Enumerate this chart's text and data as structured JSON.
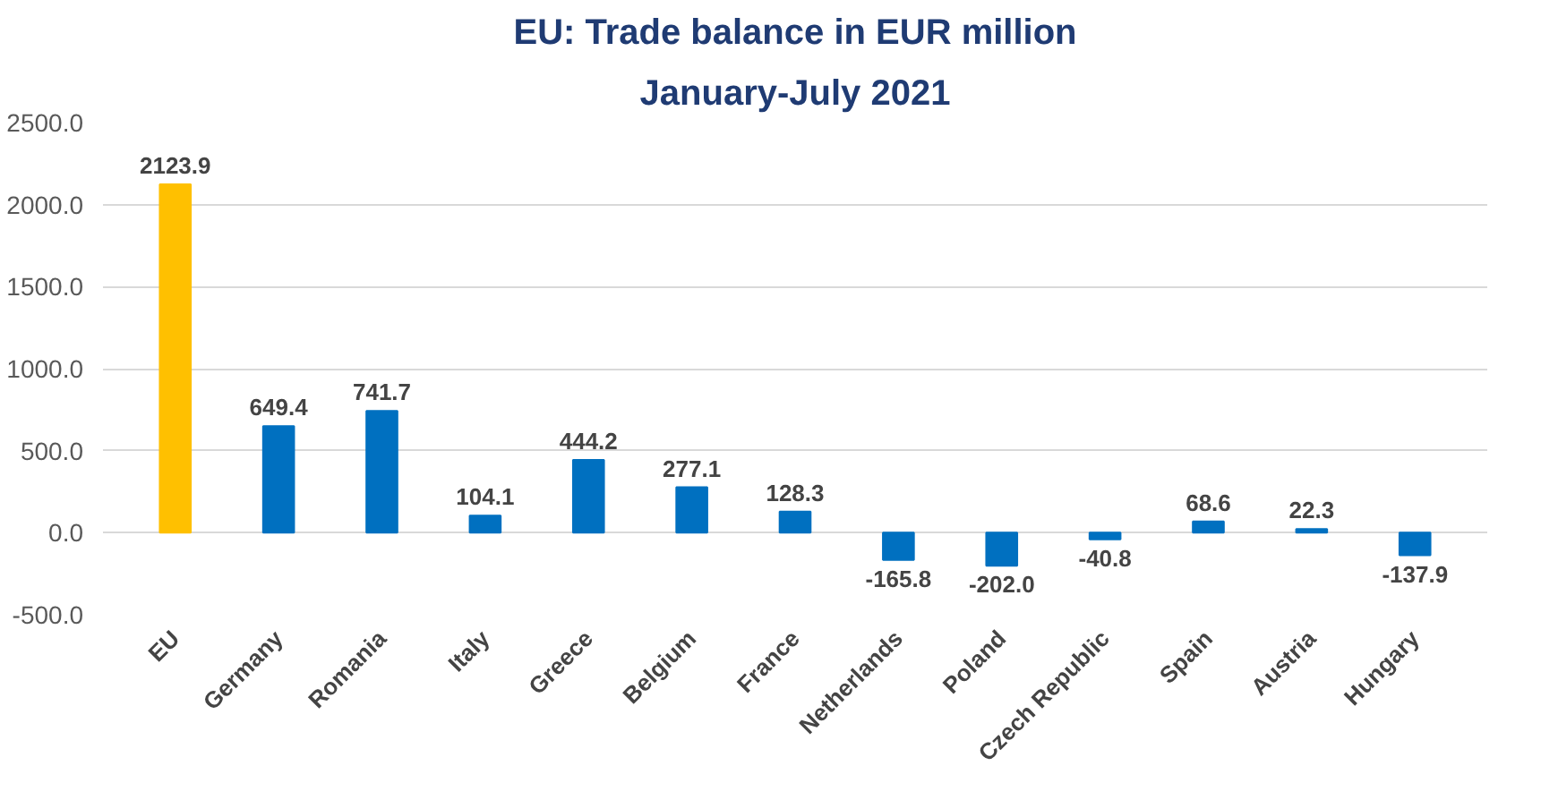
{
  "chart_data": {
    "type": "bar",
    "title": "EU: Trade balance in EUR million",
    "subtitle": "January-July 2021",
    "categories": [
      "EU",
      "Germany",
      "Romania",
      "Italy",
      "Greece",
      "Belgium",
      "France",
      "Netherlands",
      "Poland",
      "Czech Republic",
      "Spain",
      "Austria",
      "Hungary"
    ],
    "values": [
      2123.9,
      649.4,
      741.7,
      104.1,
      444.2,
      277.1,
      128.3,
      -165.8,
      -202.0,
      -40.8,
      68.6,
      22.3,
      -137.9
    ],
    "value_labels": [
      "2123.9",
      "649.4",
      "741.7",
      "104.1",
      "444.2",
      "277.1",
      "128.3",
      "-165.8",
      "-202.0",
      "-40.8",
      "68.6",
      "22.3",
      "-137.9"
    ],
    "colors": [
      "#ffc000",
      "#0070c0",
      "#0070c0",
      "#0070c0",
      "#0070c0",
      "#0070c0",
      "#0070c0",
      "#0070c0",
      "#0070c0",
      "#0070c0",
      "#0070c0",
      "#0070c0",
      "#0070c0"
    ],
    "ylim": [
      -500,
      2500
    ],
    "yticks": [
      {
        "value": -500,
        "label": "-500.0"
      },
      {
        "value": 0,
        "label": "0.0"
      },
      {
        "value": 500,
        "label": "500.0"
      },
      {
        "value": 1000,
        "label": "1000.0"
      },
      {
        "value": 1500,
        "label": "1500.0"
      },
      {
        "value": 2000,
        "label": "2000.0"
      },
      {
        "value": 2500,
        "label": "2500.0"
      }
    ],
    "grid": "y"
  }
}
